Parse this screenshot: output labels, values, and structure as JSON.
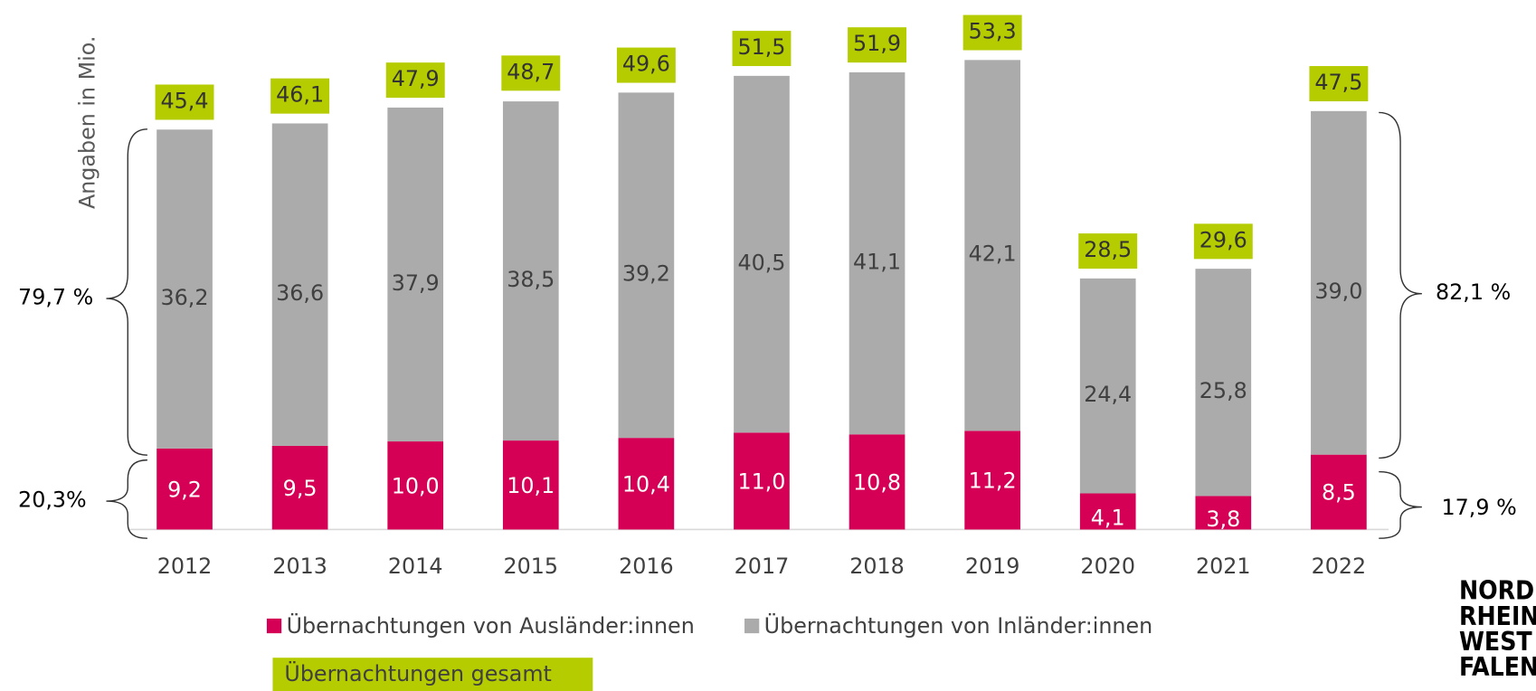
{
  "chart_data": {
    "type": "stacked-bar",
    "y_axis_label": "Angaben in Mio.",
    "categories": [
      "2012",
      "2013",
      "2014",
      "2015",
      "2016",
      "2017",
      "2018",
      "2019",
      "2020",
      "2021",
      "2022"
    ],
    "ylim": [
      0,
      60
    ],
    "series": [
      {
        "name": "Übernachtungen von Ausländer:innen",
        "color": "#d50056",
        "values": [
          9.2,
          9.5,
          10.0,
          10.1,
          10.4,
          11.0,
          10.8,
          11.2,
          4.1,
          3.8,
          8.5
        ],
        "value_labels": [
          "9,2",
          "9,5",
          "10,0",
          "10,1",
          "10,4",
          "11,0",
          "10,8",
          "11,2",
          "4,1",
          "3,8",
          "8,5"
        ]
      },
      {
        "name": "Übernachtungen von Inländer:innen",
        "color": "#ababab",
        "values": [
          36.2,
          36.6,
          37.9,
          38.5,
          39.2,
          40.5,
          41.1,
          42.1,
          24.4,
          25.8,
          39.0
        ],
        "value_labels": [
          "36,2",
          "36,6",
          "37,9",
          "38,5",
          "39,2",
          "40,5",
          "41,1",
          "42,1",
          "24,4",
          "25,8",
          "39,0"
        ]
      }
    ],
    "totals": {
      "name": "Übernachtungen gesamt",
      "color": "#b5cc00",
      "values": [
        45.4,
        46.1,
        47.9,
        48.7,
        49.6,
        51.5,
        51.9,
        53.3,
        28.5,
        29.6,
        47.5
      ],
      "value_labels": [
        "45,4",
        "46,1",
        "47,9",
        "48,7",
        "49,6",
        "51,5",
        "51,9",
        "53,3",
        "28,5",
        "29,6",
        "47,5"
      ]
    },
    "annotations": {
      "left_upper": "79,7 %",
      "left_lower": "20,3%",
      "right_upper": "82,1 %",
      "right_lower": "17,9 %"
    },
    "logo": [
      "NORD",
      "RHEIN",
      "WEST",
      "FALEN"
    ]
  }
}
